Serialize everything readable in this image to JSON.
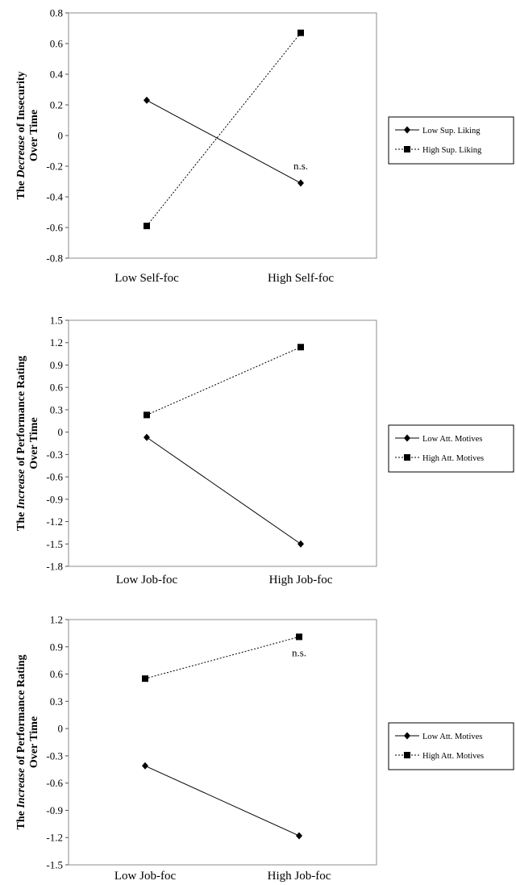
{
  "chart_data": [
    {
      "type": "line",
      "categories": [
        "Low Self-foc",
        "High Self-foc"
      ],
      "ylim": [
        -0.8,
        0.8
      ],
      "yticks": [
        "0.8",
        "0.6",
        "0.4",
        "0.2",
        "0",
        "-0.2",
        "-0.4",
        "-0.6",
        "-0.8"
      ],
      "ylabel": {
        "line1_pre": "The ",
        "line1_em": "Decrease",
        "line1_post": " of Insecurity",
        "line2": "Over Time"
      },
      "series": [
        {
          "name": "Low Sup. Liking",
          "marker": "diamond",
          "dash": "solid",
          "values": [
            0.23,
            -0.31
          ]
        },
        {
          "name": "High Sup. Liking",
          "marker": "square",
          "dash": "dotted",
          "values": [
            -0.59,
            0.67
          ]
        }
      ],
      "annotations": [
        {
          "text": "n.s.",
          "category": 1,
          "y": -0.2
        }
      ]
    },
    {
      "type": "line",
      "categories": [
        "Low Job-foc",
        "High Job-foc"
      ],
      "ylim": [
        -1.8,
        1.5
      ],
      "yticks": [
        "1.5",
        "1.2",
        "0.9",
        "0.6",
        "0.3",
        "0",
        "-0.3",
        "-0.6",
        "-0.9",
        "-1.2",
        "-1.5",
        "-1.8"
      ],
      "ylabel": {
        "line1_pre": "The ",
        "line1_em": "Increase",
        "line1_post": " of Performance Rating",
        "line2": "Over Time"
      },
      "series": [
        {
          "name": "Low Att. Motives",
          "marker": "diamond",
          "dash": "solid",
          "values": [
            -0.07,
            -1.5
          ]
        },
        {
          "name": "High Att. Motives",
          "marker": "square",
          "dash": "dotted",
          "values": [
            0.23,
            1.14
          ]
        }
      ],
      "annotations": []
    },
    {
      "type": "line",
      "categories": [
        "Low Job-foc",
        "High Job-foc"
      ],
      "ylim": [
        -1.5,
        1.2
      ],
      "yticks": [
        "1.2",
        "0.9",
        "0.6",
        "0.3",
        "0",
        "-0.3",
        "-0.6",
        "-0.9",
        "-1.2",
        "-1.5"
      ],
      "ylabel": {
        "line1_pre": "The ",
        "line1_em": "Increase",
        "line1_post": " of Performance Rating",
        "line2": "Over Time"
      },
      "series": [
        {
          "name": "Low Att. Motives",
          "marker": "diamond",
          "dash": "solid",
          "values": [
            -0.41,
            -1.18
          ]
        },
        {
          "name": "High Att. Motives",
          "marker": "square",
          "dash": "dotted",
          "values": [
            0.55,
            1.01
          ]
        }
      ],
      "annotations": [
        {
          "text": "n.s.",
          "category": 1,
          "y": 0.83
        }
      ]
    }
  ]
}
